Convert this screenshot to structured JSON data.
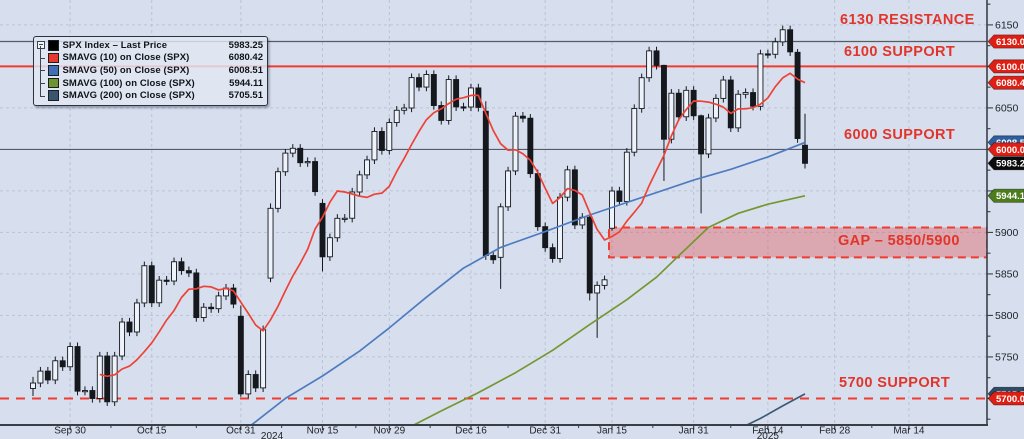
{
  "legend": {
    "rows": [
      {
        "label": "SPX Index – Last Price",
        "value": "5983.25",
        "color": "#000000"
      },
      {
        "label": "SMAVG (10)  on Close (SPX)",
        "value": "6080.42",
        "color": "#e8392f"
      },
      {
        "label": "SMAVG (50)  on Close (SPX)",
        "value": "6008.51",
        "color": "#3f6fb5"
      },
      {
        "label": "SMAVG (100)  on Close (SPX)",
        "value": "5944.11",
        "color": "#6d9432"
      },
      {
        "label": "SMAVG (200)  on Close (SPX)",
        "value": "5705.51",
        "color": "#3a566f"
      }
    ]
  },
  "annotations": {
    "r6130": "6130 RESISTANCE",
    "s6100": "6100 SUPPORT",
    "s6000": "6000 SUPPORT",
    "gap": "GAP – 5850/5900",
    "s5700": "5700 SUPPORT"
  },
  "colors": {
    "bg": "#d7dfee",
    "grid": "#b9c3d6",
    "candle_up_fill": "#eef2fa",
    "candle_stroke": "#15181d",
    "candle_down_fill": "#15181d",
    "sma10": "#ee4237",
    "sma50": "#4f7cc0",
    "sma100": "#74972e",
    "sma200": "#3c5a75",
    "level_dark": "#565c66",
    "level_red": "#f03b2e",
    "band_fill": "rgba(224,90,90,0.42)",
    "band_border": "#ef3b30",
    "axis": "#3a3f47",
    "tick_label": "#20242b",
    "annotation_red": "#e1352b",
    "badge_red": "#df1f14",
    "badge_blue": "#2e5f9e",
    "badge_green": "#4c7c1c",
    "badge_navy": "#2e4c68",
    "badge_black": "#0c0c0c"
  },
  "chart_data": {
    "type": "candlestick",
    "symbol": "SPX Index",
    "last_price": 5983.25,
    "ylim": [
      5668,
      6180
    ],
    "y_gridlines": [
      5750,
      5800,
      5850,
      5900,
      5950,
      6050,
      6150
    ],
    "y_ticks_plain": [
      6150,
      6050,
      5900,
      5850,
      5800,
      5750
    ],
    "y_badges": [
      {
        "label": "6130.00",
        "price": 6130.0,
        "color": "red"
      },
      {
        "label": "6100.00",
        "price": 6100.0,
        "color": "red"
      },
      {
        "label": "6080.42",
        "price": 6080.42,
        "color": "red"
      },
      {
        "label": "6008.51",
        "price": 6008.51,
        "color": "blue"
      },
      {
        "label": "6000.00",
        "price": 6000.0,
        "color": "red"
      },
      {
        "label": "5983.25",
        "price": 5983.25,
        "color": "black"
      },
      {
        "label": "5944.11",
        "price": 5944.11,
        "color": "green"
      },
      {
        "label": "5705.51",
        "price": 5705.51,
        "color": "navy"
      },
      {
        "label": "5700.00",
        "price": 5700.0,
        "color": "red"
      }
    ],
    "levels": [
      {
        "name": "6130 resistance",
        "price": 6130,
        "color": "dark",
        "width": 1.2,
        "dashed": false
      },
      {
        "name": "6100 support",
        "price": 6100,
        "color": "red",
        "width": 2,
        "dashed": false
      },
      {
        "name": "6000 support",
        "price": 6000,
        "color": "dark",
        "width": 1.2,
        "dashed": false
      },
      {
        "name": "5700 support",
        "price": 5700,
        "color": "red",
        "width": 2,
        "dashed": true
      }
    ],
    "gap_band": {
      "label": "GAP – 5850/5900",
      "i_start": 77.6,
      "top": 5906,
      "bottom": 5870
    },
    "x_ticks": [
      {
        "label": "Sep 30",
        "i": 5
      },
      {
        "label": "Oct 15",
        "i": 16
      },
      {
        "label": "Oct 31",
        "i": 28
      },
      {
        "label": "Nov 15",
        "i": 39
      },
      {
        "label": "Nov 29",
        "i": 48
      },
      {
        "label": "Dec 16",
        "i": 59
      },
      {
        "label": "Dec 31",
        "i": 69
      },
      {
        "label": "Jan 15",
        "i": 78
      },
      {
        "label": "Jan 31",
        "i": 89
      },
      {
        "label": "Feb 14",
        "i": 99
      },
      {
        "label": "Feb 28",
        "i": 108
      },
      {
        "label": "Mar 14",
        "i": 118
      }
    ],
    "year_labels": [
      {
        "label": "2024",
        "i": 32.2
      },
      {
        "label": "2025",
        "i": 99
      }
    ],
    "dates": [
      "Sep 23",
      "Sep 24",
      "Sep 25",
      "Sep 26",
      "Sep 27",
      "Sep 30",
      "Oct 1",
      "Oct 2",
      "Oct 3",
      "Oct 4",
      "Oct 7",
      "Oct 8",
      "Oct 9",
      "Oct 10",
      "Oct 11",
      "Oct 14",
      "Oct 15",
      "Oct 16",
      "Oct 17",
      "Oct 18",
      "Oct 21",
      "Oct 22",
      "Oct 23",
      "Oct 24",
      "Oct 25",
      "Oct 28",
      "Oct 29",
      "Oct 30",
      "Oct 31",
      "Nov 1",
      "Nov 4",
      "Nov 5",
      "Nov 6",
      "Nov 7",
      "Nov 8",
      "Nov 11",
      "Nov 12",
      "Nov 13",
      "Nov 14",
      "Nov 15",
      "Nov 18",
      "Nov 19",
      "Nov 20",
      "Nov 21",
      "Nov 22",
      "Nov 25",
      "Nov 26",
      "Nov 27",
      "Nov 29",
      "Dec 2",
      "Dec 3",
      "Dec 4",
      "Dec 5",
      "Dec 6",
      "Dec 9",
      "Dec 10",
      "Dec 11",
      "Dec 12",
      "Dec 13",
      "Dec 16",
      "Dec 17",
      "Dec 18",
      "Dec 19",
      "Dec 20",
      "Dec 23",
      "Dec 24",
      "Dec 26",
      "Dec 27",
      "Dec 30",
      "Dec 31",
      "Jan 2",
      "Jan 3",
      "Jan 6",
      "Jan 7",
      "Jan 8",
      "Jan 10",
      "Jan 13",
      "Jan 14",
      "Jan 15",
      "Jan 16",
      "Jan 17",
      "Jan 21",
      "Jan 22",
      "Jan 23",
      "Jan 24",
      "Jan 27",
      "Jan 28",
      "Jan 29",
      "Jan 30",
      "Jan 31",
      "Feb 3",
      "Feb 4",
      "Feb 5",
      "Feb 6",
      "Feb 7",
      "Feb 10",
      "Feb 11",
      "Feb 12",
      "Feb 13",
      "Feb 14",
      "Feb 18",
      "Feb 19",
      "Feb 20",
      "Feb 21",
      "Feb 24"
    ],
    "closes": [
      5718.57,
      5732.93,
      5722.26,
      5745.37,
      5738.17,
      5762.48,
      5708.75,
      5709.54,
      5699.94,
      5751.07,
      5695.94,
      5751.13,
      5792.04,
      5780.05,
      5815.03,
      5859.85,
      5815.26,
      5842.47,
      5841.47,
      5864.67,
      5853.98,
      5851.2,
      5797.42,
      5809.86,
      5808.12,
      5823.52,
      5832.92,
      5813.67,
      5705.45,
      5728.8,
      5712.69,
      5782.76,
      5929.04,
      5973.1,
      5995.54,
      6001.35,
      5983.99,
      5985.38,
      5949.17,
      5870.62,
      5893.62,
      5916.98,
      5917.11,
      5948.71,
      5969.34,
      5987.37,
      6021.63,
      5998.74,
      6032.38,
      6047.15,
      6049.88,
      6086.49,
      6075.11,
      6090.27,
      6052.85,
      6034.91,
      6084.19,
      6051.25,
      6051.09,
      6074.08,
      6050.61,
      5872.16,
      5867.08,
      5930.85,
      5974.07,
      6040.04,
      6037.59,
      5970.84,
      5906.94,
      5881.63,
      5868.55,
      5942.47,
      5975.38,
      5909.03,
      5918.25,
      5827.04,
      5836.22,
      5842.91,
      5949.91,
      5937.34,
      5996.66,
      6049.24,
      6086.37,
      6118.71,
      6101.24,
      6012.28,
      6067.7,
      6039.31,
      6071.17,
      6040.53,
      5994.57,
      6037.88,
      6061.48,
      6083.57,
      6025.99,
      6066.44,
      6068.5,
      6051.97,
      6115.07,
      6114.63,
      6129.58,
      6144.15,
      6117.52,
      6013.13,
      5983.25
    ],
    "ohlc_overrides": {
      "0": [
        5712.0,
        5726.0,
        5703.0,
        5718.57
      ],
      "28": [
        5799.0,
        5812.0,
        5702.0,
        5705.45
      ],
      "32": [
        5845.0,
        5935.0,
        5840.0,
        5929.04
      ],
      "39": [
        5935.0,
        5940.0,
        5853.0,
        5870.62
      ],
      "61": [
        6046.0,
        6058.0,
        5867.0,
        5872.16
      ],
      "63": [
        5870.0,
        5935.0,
        5832.0,
        5930.85
      ],
      "75": [
        5918.25,
        5920.0,
        5818.0,
        5827.04
      ],
      "76": [
        5827.04,
        5841.0,
        5773.0,
        5836.22
      ],
      "78": [
        5905.0,
        5955.0,
        5902.0,
        5949.91
      ],
      "85": [
        6101.24,
        6102.0,
        5962.0,
        6012.28
      ],
      "90": [
        6040.53,
        6042.0,
        5923.0,
        5994.57
      ],
      "103": [
        6117.0,
        6121.0,
        6008.0,
        6013.13
      ],
      "104": [
        6005.0,
        6043.0,
        5977.0,
        5983.25
      ]
    },
    "default_wick": 5,
    "sma": {
      "sma10": {
        "window": 10,
        "computed": true
      },
      "sma50": {
        "points": [
          [
            26,
            5645
          ],
          [
            30,
            5672
          ],
          [
            34,
            5700
          ],
          [
            39,
            5727
          ],
          [
            44,
            5757
          ],
          [
            48,
            5785
          ],
          [
            53,
            5822
          ],
          [
            58,
            5857
          ],
          [
            63,
            5882
          ],
          [
            69,
            5901
          ],
          [
            75,
            5921
          ],
          [
            80,
            5936
          ],
          [
            85,
            5951
          ],
          [
            89,
            5963
          ],
          [
            94,
            5976
          ],
          [
            99,
            5991
          ],
          [
            104,
            6008.51
          ]
        ]
      },
      "sma100": {
        "points": [
          [
            46,
            5638
          ],
          [
            50,
            5662
          ],
          [
            55,
            5685
          ],
          [
            60,
            5707
          ],
          [
            65,
            5731
          ],
          [
            70,
            5758
          ],
          [
            75,
            5789
          ],
          [
            80,
            5819
          ],
          [
            84,
            5846
          ],
          [
            87,
            5872
          ],
          [
            91,
            5906
          ],
          [
            95,
            5923
          ],
          [
            99,
            5934
          ],
          [
            104,
            5944.11
          ]
        ]
      },
      "sma200": {
        "points": [
          [
            95,
            5663
          ],
          [
            98,
            5676
          ],
          [
            101,
            5691
          ],
          [
            104,
            5705.51
          ]
        ]
      }
    }
  }
}
